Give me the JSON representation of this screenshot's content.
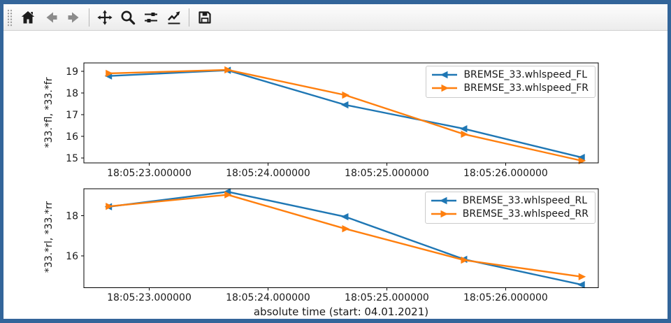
{
  "window": {
    "border_color": "#33659a"
  },
  "toolbar": {
    "items": [
      {
        "id": "home",
        "icon": "home-icon",
        "enabled": true
      },
      {
        "id": "back",
        "icon": "arrow-left-icon",
        "enabled": false
      },
      {
        "id": "forward",
        "icon": "arrow-right-icon",
        "enabled": false
      },
      {
        "id": "pan",
        "icon": "pan-arrows-icon",
        "enabled": true
      },
      {
        "id": "zoom-to-rect",
        "icon": "magnifier-icon",
        "enabled": true
      },
      {
        "id": "configure-subplots",
        "icon": "sliders-icon",
        "enabled": true
      },
      {
        "id": "edit-parameters",
        "icon": "line-chart-icon",
        "enabled": true
      },
      {
        "id": "save",
        "icon": "floppy-disk-icon",
        "enabled": true
      }
    ]
  },
  "figure": {
    "xlabel": "absolute time (start: 04.01.2021)",
    "chart_data": [
      {
        "type": "line",
        "ylabel": "*33.*fl, *33.*fr",
        "x_unit": "seconds after 18:05:00",
        "x": [
          22.66,
          23.66,
          24.65,
          25.65,
          26.64
        ],
        "xlim": [
          22.45,
          26.78
        ],
        "ylim": [
          14.78,
          19.38
        ],
        "xticks": {
          "values": [
            23,
            24,
            25,
            26
          ],
          "labels": [
            "18:05:23.000000",
            "18:05:24.000000",
            "18:05:25.000000",
            "18:05:26.000000"
          ]
        },
        "yticks": {
          "values": [
            19,
            18,
            17,
            16,
            15
          ],
          "labels": [
            "19",
            "18",
            "17",
            "16",
            "15"
          ]
        },
        "grid": false,
        "legend_position": "upper right",
        "series": [
          {
            "name": "BREMSE_33.whlspeed_FL",
            "color": "#1f77b4",
            "marker": "left-triangle",
            "values": [
              18.78,
              19.04,
              17.45,
              16.35,
              15.03
            ]
          },
          {
            "name": "BREMSE_33.whlspeed_FR",
            "color": "#ff7f0e",
            "marker": "right-triangle",
            "values": [
              18.9,
              19.06,
              17.9,
              16.1,
              14.88
            ]
          }
        ]
      },
      {
        "type": "line",
        "ylabel": "*33.*rl, *33.*rr",
        "x_unit": "seconds after 18:05:00",
        "x": [
          22.66,
          23.66,
          24.65,
          25.65,
          26.64
        ],
        "xlim": [
          22.45,
          26.78
        ],
        "ylim": [
          14.4,
          19.35
        ],
        "xticks": {
          "values": [
            23,
            24,
            25,
            26
          ],
          "labels": [
            "18:05:23.000000",
            "18:05:24.000000",
            "18:05:25.000000",
            "18:05:26.000000"
          ]
        },
        "yticks": {
          "values": [
            18,
            16
          ],
          "labels": [
            "18",
            "16"
          ]
        },
        "grid": false,
        "legend_position": "upper right",
        "series": [
          {
            "name": "BREMSE_33.whlspeed_RL",
            "color": "#1f77b4",
            "marker": "left-triangle",
            "values": [
              18.45,
              19.2,
              17.95,
              15.82,
              14.55
            ]
          },
          {
            "name": "BREMSE_33.whlspeed_RR",
            "color": "#ff7f0e",
            "marker": "right-triangle",
            "values": [
              18.47,
              19.05,
              17.35,
              15.78,
              14.95
            ]
          }
        ]
      }
    ]
  }
}
